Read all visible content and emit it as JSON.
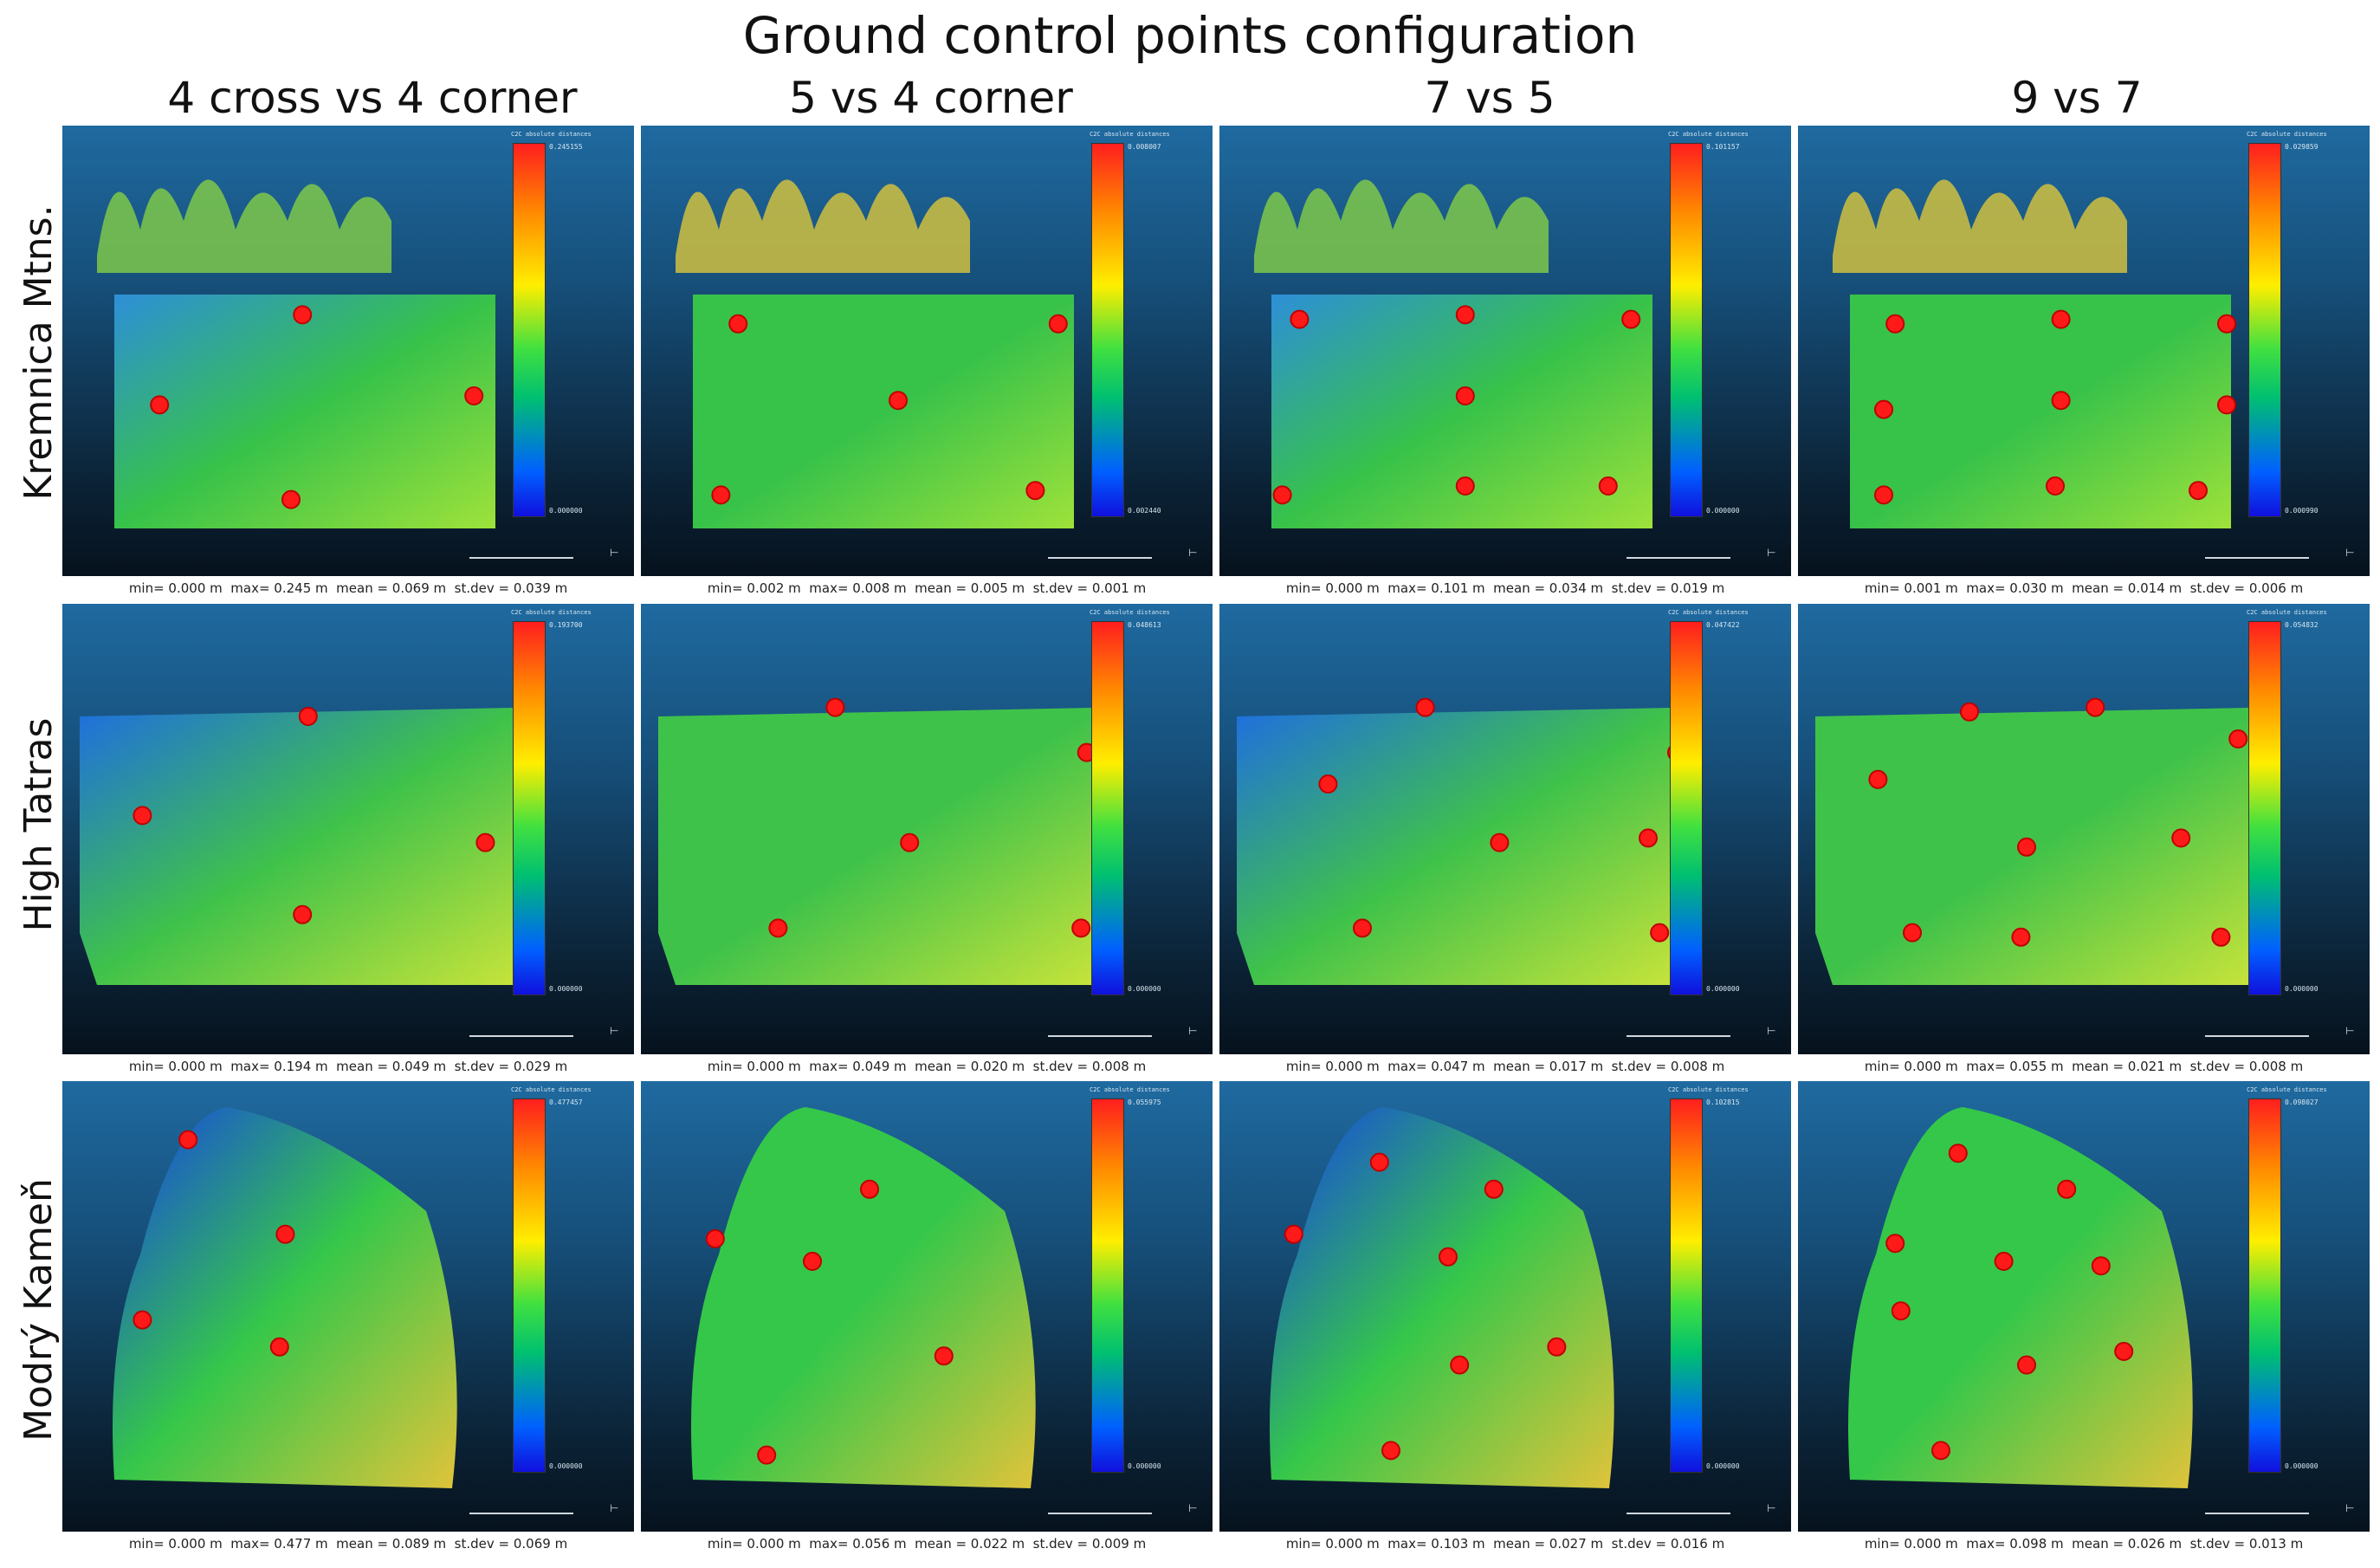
{
  "title": "Ground control points configuration",
  "columns": [
    "4 cross vs 4 corner",
    "5 vs 4 corner",
    "7 vs 5",
    "9 vs 7"
  ],
  "rows": [
    "Kremnica Mtns.",
    "High Tatras",
    "Modrý Kameň"
  ],
  "scale_title": "C2C absolute distances",
  "scale_axis_mark": "⊢",
  "panels": [
    [
      {
        "scale_max": "0.245155",
        "scale_min": "0.000000",
        "stats": "min= 0.000 m  max= 0.245 m  mean = 0.069 m  st.dev = 0.039 m",
        "gcp_count": 4
      },
      {
        "scale_max": "0.008007",
        "scale_min": "0.002440",
        "stats": "min= 0.002 m  max= 0.008 m  mean = 0.005 m  st.dev = 0.001 m",
        "gcp_count": 5
      },
      {
        "scale_max": "0.101157",
        "scale_min": "0.000000",
        "stats": "min= 0.000 m  max= 0.101 m  mean = 0.034 m  st.dev = 0.019 m",
        "gcp_count": 7
      },
      {
        "scale_max": "0.029859",
        "scale_min": "0.000990",
        "stats": "min= 0.001 m  max= 0.030 m  mean = 0.014 m  st.dev = 0.006 m",
        "gcp_count": 9
      }
    ],
    [
      {
        "scale_max": "0.193700",
        "scale_min": "0.000000",
        "stats": "min= 0.000 m  max= 0.194 m  mean = 0.049 m  st.dev = 0.029 m",
        "gcp_count": 4
      },
      {
        "scale_max": "0.048613",
        "scale_min": "0.000000",
        "stats": "min= 0.000 m  max= 0.049 m  mean = 0.020 m  st.dev = 0.008 m",
        "gcp_count": 5
      },
      {
        "scale_max": "0.047422",
        "scale_min": "0.000000",
        "stats": "min= 0.000 m  max= 0.047 m  mean = 0.017 m  st.dev = 0.008 m",
        "gcp_count": 7
      },
      {
        "scale_max": "0.054832",
        "scale_min": "0.000000",
        "stats": "min= 0.000 m  max= 0.055 m  mean = 0.021 m  st.dev = 0.008 m",
        "gcp_count": 9
      }
    ],
    [
      {
        "scale_max": "0.477457",
        "scale_min": "0.000000",
        "stats": "min= 0.000 m  max= 0.477 m  mean = 0.089 m  st.dev = 0.069 m",
        "gcp_count": 4
      },
      {
        "scale_max": "0.055975",
        "scale_min": "0.000000",
        "stats": "min= 0.000 m  max= 0.056 m  mean = 0.022 m  st.dev = 0.009 m",
        "gcp_count": 5
      },
      {
        "scale_max": "0.102815",
        "scale_min": "0.000000",
        "stats": "min= 0.000 m  max= 0.103 m  mean = 0.027 m  st.dev = 0.016 m",
        "gcp_count": 7
      },
      {
        "scale_max": "0.098027",
        "scale_min": "0.000000",
        "stats": "min= 0.000 m  max= 0.098 m  mean = 0.026 m  st.dev = 0.013 m",
        "gcp_count": 9
      }
    ]
  ],
  "colors": {
    "gcp_marker": "#ff1a1a",
    "background_top": "#1f6aa0",
    "background_bottom": "#06121d"
  }
}
